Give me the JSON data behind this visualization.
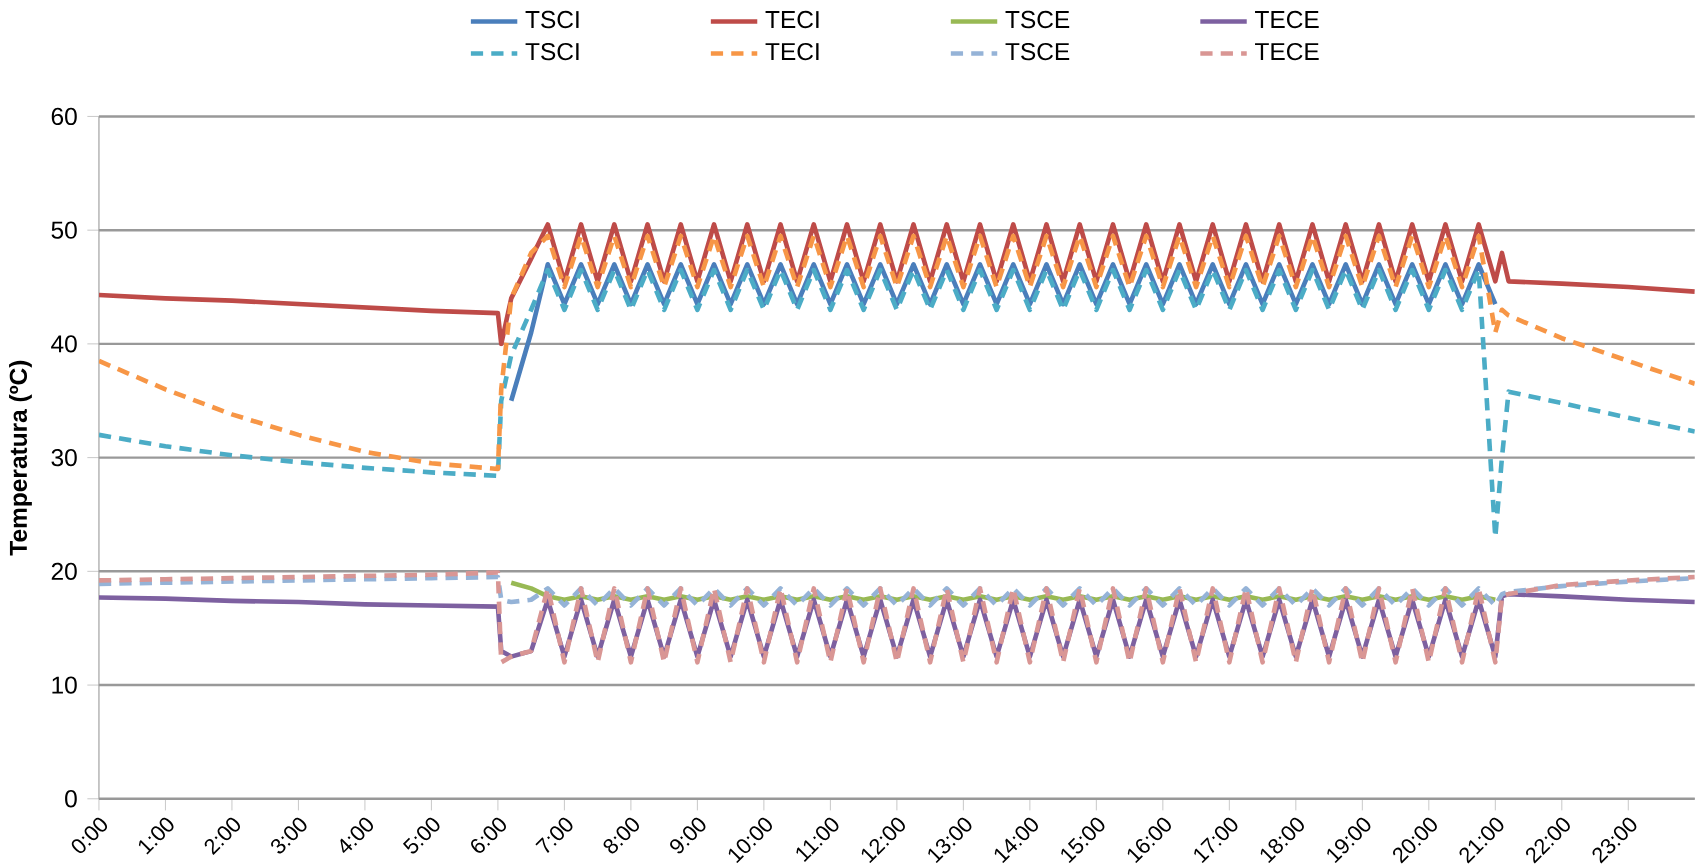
{
  "chart_data": {
    "type": "line",
    "ylabel": "Temperatura (ºC)",
    "x": [
      0,
      1,
      2,
      3,
      4,
      5,
      6,
      6.05,
      6.2,
      6.5,
      6.75,
      7,
      7.25,
      7.5,
      7.75,
      8,
      8.25,
      8.5,
      8.75,
      9,
      9.25,
      9.5,
      9.75,
      10,
      10.25,
      10.5,
      10.75,
      11,
      11.25,
      11.5,
      11.75,
      12,
      12.25,
      12.5,
      12.75,
      13,
      13.25,
      13.5,
      13.75,
      14,
      14.25,
      14.5,
      14.75,
      15,
      15.25,
      15.5,
      15.75,
      16,
      16.25,
      16.5,
      16.75,
      17,
      17.25,
      17.5,
      17.75,
      18,
      18.25,
      18.5,
      18.75,
      19,
      19.25,
      19.5,
      19.75,
      20,
      20.25,
      20.5,
      20.75,
      21,
      21.1,
      21.2,
      22,
      23,
      24
    ],
    "xlim": [
      0,
      24
    ],
    "xticks": [
      {
        "value": 0,
        "label": "0:00"
      },
      {
        "value": 1,
        "label": "1:00"
      },
      {
        "value": 2,
        "label": "2:00"
      },
      {
        "value": 3,
        "label": "3:00"
      },
      {
        "value": 4,
        "label": "4:00"
      },
      {
        "value": 5,
        "label": "5:00"
      },
      {
        "value": 6,
        "label": "6:00"
      },
      {
        "value": 7,
        "label": "7:00"
      },
      {
        "value": 8,
        "label": "8:00"
      },
      {
        "value": 9,
        "label": "9:00"
      },
      {
        "value": 10,
        "label": "10:00"
      },
      {
        "value": 11,
        "label": "11:00"
      },
      {
        "value": 12,
        "label": "12:00"
      },
      {
        "value": 13,
        "label": "13:00"
      },
      {
        "value": 14,
        "label": "14:00"
      },
      {
        "value": 15,
        "label": "15:00"
      },
      {
        "value": 16,
        "label": "16:00"
      },
      {
        "value": 17,
        "label": "17:00"
      },
      {
        "value": 18,
        "label": "18:00"
      },
      {
        "value": 19,
        "label": "19:00"
      },
      {
        "value": 20,
        "label": "20:00"
      },
      {
        "value": 21,
        "label": "21:00"
      },
      {
        "value": 22,
        "label": "22:00"
      },
      {
        "value": 23,
        "label": "23:00"
      }
    ],
    "ylim": [
      0,
      60
    ],
    "yticks": [
      0,
      10,
      20,
      30,
      40,
      50,
      60
    ],
    "grid": "y",
    "legend": "top",
    "marker": "none",
    "series": [
      {
        "name": "TSCI",
        "color": "#4a7ebb",
        "line_style": "solid",
        "values": [
          null,
          null,
          null,
          null,
          null,
          null,
          null,
          null,
          35,
          41,
          47,
          43.5,
          47,
          43.5,
          47,
          43.5,
          47,
          43.5,
          47,
          43.5,
          47,
          43.5,
          47,
          43.5,
          47,
          43.5,
          47,
          43.5,
          47,
          43.5,
          47,
          43.5,
          47,
          43.5,
          47,
          43.5,
          47,
          43.5,
          47,
          43.5,
          47,
          43.5,
          47,
          43.5,
          47,
          43.5,
          47,
          43.5,
          47,
          43.5,
          47,
          43.5,
          47,
          43.5,
          47,
          43.5,
          47,
          43.5,
          47,
          43.5,
          47,
          43.5,
          47,
          43.5,
          47,
          43.5,
          47,
          43.5,
          null,
          null,
          null,
          null,
          null
        ]
      },
      {
        "name": "TECI",
        "color": "#be4b48",
        "line_style": "solid",
        "values": [
          44.3,
          44.0,
          43.8,
          43.5,
          43.2,
          42.9,
          42.7,
          40,
          44,
          47.5,
          50.5,
          45.5,
          50.5,
          45.5,
          50.5,
          45.5,
          50.5,
          45.5,
          50.5,
          45.5,
          50.5,
          45.5,
          50.5,
          45.5,
          50.5,
          45.5,
          50.5,
          45.5,
          50.5,
          45.5,
          50.5,
          45.5,
          50.5,
          45.5,
          50.5,
          45.5,
          50.5,
          45.5,
          50.5,
          45.5,
          50.5,
          45.5,
          50.5,
          45.5,
          50.5,
          45.5,
          50.5,
          45.5,
          50.5,
          45.5,
          50.5,
          45.5,
          50.5,
          45.5,
          50.5,
          45.5,
          50.5,
          45.5,
          50.5,
          45.5,
          50.5,
          45.5,
          50.5,
          45.5,
          50.5,
          45.5,
          50.5,
          45.5,
          48,
          45.5,
          45.3,
          45,
          44.6
        ]
      },
      {
        "name": "TSCE",
        "color": "#98b954",
        "line_style": "solid",
        "values": [
          null,
          null,
          null,
          null,
          null,
          null,
          null,
          null,
          19,
          18.5,
          17.8,
          17.5,
          17.8,
          17.5,
          17.8,
          17.5,
          17.8,
          17.5,
          17.8,
          17.5,
          17.8,
          17.5,
          17.8,
          17.5,
          17.8,
          17.5,
          17.8,
          17.5,
          17.8,
          17.5,
          17.8,
          17.5,
          17.8,
          17.5,
          17.8,
          17.5,
          17.8,
          17.5,
          17.8,
          17.5,
          17.8,
          17.5,
          17.8,
          17.5,
          17.8,
          17.5,
          17.8,
          17.5,
          17.8,
          17.5,
          17.8,
          17.5,
          17.8,
          17.5,
          17.8,
          17.5,
          17.8,
          17.5,
          17.8,
          17.5,
          17.8,
          17.5,
          17.8,
          17.5,
          17.8,
          17.5,
          17.8,
          17.5,
          null,
          null,
          null,
          null,
          null
        ]
      },
      {
        "name": "TECE",
        "color": "#7d60a0",
        "line_style": "solid",
        "values": [
          17.7,
          17.6,
          17.4,
          17.3,
          17.1,
          17.0,
          16.9,
          13,
          12.5,
          13,
          17.5,
          12.5,
          17.5,
          12.5,
          17.5,
          12.5,
          17.5,
          12.5,
          17.5,
          12.5,
          17.5,
          12.5,
          17.5,
          12.5,
          17.5,
          12.5,
          17.5,
          12.5,
          17.5,
          12.5,
          17.5,
          12.5,
          17.5,
          12.5,
          17.5,
          12.5,
          17.5,
          12.5,
          17.5,
          12.5,
          17.5,
          12.5,
          17.5,
          12.5,
          17.5,
          12.5,
          17.5,
          12.5,
          17.5,
          12.5,
          17.5,
          12.5,
          17.5,
          12.5,
          17.5,
          12.5,
          17.5,
          12.5,
          17.5,
          12.5,
          17.5,
          12.5,
          17.5,
          12.5,
          17.5,
          12.5,
          17.5,
          12.5,
          17.8,
          18,
          17.8,
          17.5,
          17.3
        ]
      },
      {
        "name": "TSCI",
        "color": "#4bacc6",
        "line_style": "dashed",
        "values": [
          32,
          31,
          30.2,
          29.6,
          29.1,
          28.7,
          28.4,
          35,
          39,
          43,
          46.5,
          43,
          46.5,
          43,
          46.5,
          43,
          46.5,
          43,
          46.5,
          43,
          46.5,
          43,
          46.5,
          43,
          46.5,
          43,
          46.5,
          43,
          46.5,
          43,
          46.5,
          43,
          46.5,
          43,
          46.5,
          43,
          46.5,
          43,
          46.5,
          43,
          46.5,
          43,
          46.5,
          43,
          46.5,
          43,
          46.5,
          43,
          46.5,
          43,
          46.5,
          43,
          46.5,
          43,
          46.5,
          43,
          46.5,
          43,
          46.5,
          43,
          46.5,
          43,
          46.5,
          43,
          46.5,
          43,
          46.5,
          23,
          30,
          35.8,
          34.8,
          33.5,
          32.3
        ]
      },
      {
        "name": "TECI",
        "color": "#f79646",
        "line_style": "dashed",
        "values": [
          38.5,
          36,
          33.8,
          32,
          30.5,
          29.5,
          29,
          36,
          44,
          48,
          49.5,
          45,
          49.5,
          45,
          49.5,
          45,
          49.5,
          45,
          49.5,
          45,
          49.5,
          45,
          49.5,
          45,
          49.5,
          45,
          49.5,
          45,
          49.5,
          45,
          49.5,
          45,
          49.5,
          45,
          49.5,
          45,
          49.5,
          45,
          49.5,
          45,
          49.5,
          45,
          49.5,
          45,
          49.5,
          45,
          49.5,
          45,
          49.5,
          45,
          49.5,
          45,
          49.5,
          45,
          49.5,
          45,
          49.5,
          45,
          49.5,
          45,
          49.5,
          45,
          49.5,
          45,
          49.5,
          45,
          49.5,
          41,
          43,
          42.5,
          40.5,
          38.5,
          36.5
        ]
      },
      {
        "name": "TSCE",
        "color": "#95b3d7",
        "line_style": "dashed",
        "values": [
          18.9,
          19.0,
          19.1,
          19.2,
          19.3,
          19.4,
          19.5,
          17.5,
          17.3,
          17.5,
          18.5,
          17,
          18.5,
          17,
          18.5,
          17,
          18.5,
          17,
          18.5,
          17,
          18.5,
          17,
          18.5,
          17,
          18.5,
          17,
          18.5,
          17,
          18.5,
          17,
          18.5,
          17,
          18.5,
          17,
          18.5,
          17,
          18.5,
          17,
          18.5,
          17,
          18.5,
          17,
          18.5,
          17,
          18.5,
          17,
          18.5,
          17,
          18.5,
          17,
          18.5,
          17,
          18.5,
          17,
          18.5,
          17,
          18.5,
          17,
          18.5,
          17,
          18.5,
          17,
          18.5,
          17,
          18.5,
          17,
          18.5,
          17,
          18,
          18.2,
          18.7,
          19.1,
          19.4
        ]
      },
      {
        "name": "TECE",
        "color": "#d99694",
        "line_style": "dashed",
        "values": [
          19.2,
          19.3,
          19.4,
          19.5,
          19.6,
          19.7,
          19.9,
          12,
          12.5,
          13,
          18.5,
          12,
          18.5,
          12,
          18.5,
          12,
          18.5,
          12,
          18.5,
          12,
          18.5,
          12,
          18.5,
          12,
          18.5,
          12,
          18.5,
          12,
          18.5,
          12,
          18.5,
          12,
          18.5,
          12,
          18.5,
          12,
          18.5,
          12,
          18.5,
          12,
          18.5,
          12,
          18.5,
          12,
          18.5,
          12,
          18.5,
          12,
          18.5,
          12,
          18.5,
          12,
          18.5,
          12,
          18.5,
          12,
          18.5,
          12,
          18.5,
          12,
          18.5,
          12,
          18.5,
          12,
          18.5,
          12,
          18.5,
          12,
          17.8,
          18,
          18.8,
          19.2,
          19.5
        ]
      }
    ]
  }
}
